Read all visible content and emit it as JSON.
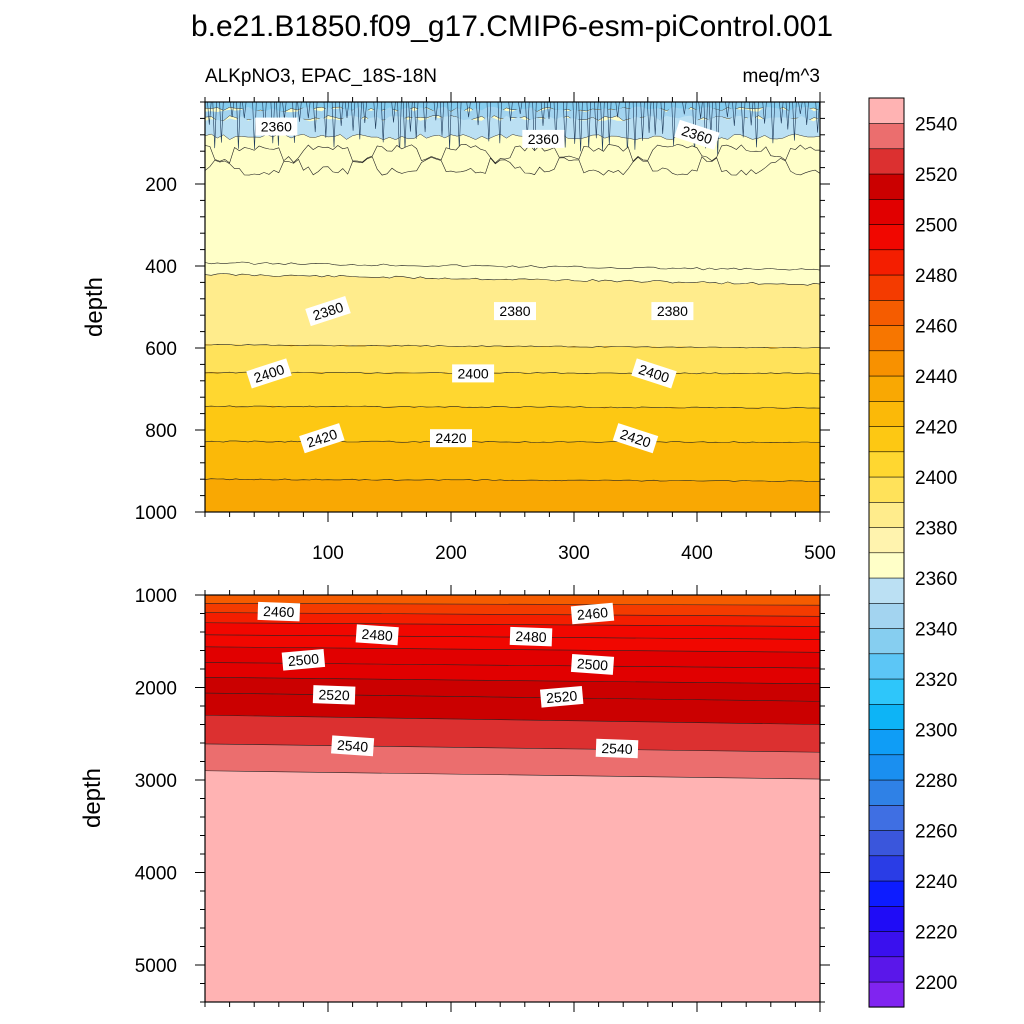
{
  "chart_data": {
    "type": "contour",
    "title": "b.e21.B1850.f09_g17.CMIP6-esm-piControl.001",
    "variable": "ALKpNO3, EPAC_18S-18N",
    "units": "meq/m^3",
    "panels": [
      {
        "name": "upper",
        "xlabel": "",
        "ylabel": "depth",
        "xlim": [
          0,
          500
        ],
        "ylim": [
          1000,
          0
        ],
        "x_ticks": [
          "100",
          "200",
          "300",
          "400",
          "500"
        ],
        "y_ticks": [
          "200",
          "400",
          "600",
          "800",
          "1000"
        ],
        "contour_labels": [
          {
            "text": "2360",
            "x": 58,
            "depth": 60
          },
          {
            "text": "2360",
            "x": 275,
            "depth": 90
          },
          {
            "text": "2360",
            "x": 400,
            "depth": 80
          },
          {
            "text": "2380",
            "x": 100,
            "depth": 510
          },
          {
            "text": "2380",
            "x": 252,
            "depth": 510
          },
          {
            "text": "2380",
            "x": 380,
            "depth": 510
          },
          {
            "text": "2400",
            "x": 52,
            "depth": 662
          },
          {
            "text": "2400",
            "x": 218,
            "depth": 662
          },
          {
            "text": "2400",
            "x": 365,
            "depth": 662
          },
          {
            "text": "2420",
            "x": 95,
            "depth": 820
          },
          {
            "text": "2420",
            "x": 200,
            "depth": 820
          },
          {
            "text": "2420",
            "x": 350,
            "depth": 820
          }
        ]
      },
      {
        "name": "lower",
        "xlabel": "",
        "ylabel": "depth",
        "xlim": [
          0,
          500
        ],
        "ylim": [
          5400,
          1000
        ],
        "y_ticks": [
          "1000",
          "2000",
          "3000",
          "4000",
          "5000"
        ],
        "contour_labels": [
          {
            "text": "2460",
            "x": 60,
            "depth": 1180
          },
          {
            "text": "2460",
            "x": 315,
            "depth": 1200
          },
          {
            "text": "2480",
            "x": 140,
            "depth": 1430
          },
          {
            "text": "2480",
            "x": 265,
            "depth": 1450
          },
          {
            "text": "2500",
            "x": 80,
            "depth": 1700
          },
          {
            "text": "2500",
            "x": 315,
            "depth": 1750
          },
          {
            "text": "2520",
            "x": 105,
            "depth": 2080
          },
          {
            "text": "2520",
            "x": 290,
            "depth": 2100
          },
          {
            "text": "2540",
            "x": 120,
            "depth": 2630
          },
          {
            "text": "2540",
            "x": 335,
            "depth": 2660
          }
        ]
      }
    ],
    "colorbar": {
      "levels_min": 2190,
      "levels_max": 2560,
      "level_step": 10,
      "labels": [
        "2200",
        "2220",
        "2240",
        "2260",
        "2280",
        "2300",
        "2320",
        "2340",
        "2360",
        "2380",
        "2400",
        "2420",
        "2440",
        "2460",
        "2480",
        "2500",
        "2520",
        "2540"
      ],
      "colors": [
        "#8024f0",
        "#5a17ea",
        "#3a10ee",
        "#1f0cf6",
        "#0d1cff",
        "#2a3de6",
        "#3a56dc",
        "#3f6fe3",
        "#2f81e6",
        "#1a8ff0",
        "#0f9df6",
        "#0db4f6",
        "#2ec6fa",
        "#5cc6f6",
        "#86cef0",
        "#a3d4f0",
        "#bbe0f3",
        "#ffffc8",
        "#fff3ae",
        "#ffec8c",
        "#ffe25a",
        "#ffd730",
        "#fdc813",
        "#fbb908",
        "#f9a803",
        "#f89100",
        "#f77600",
        "#f55c00",
        "#f43b00",
        "#f41e00",
        "#f10700",
        "#e10000",
        "#cb0000",
        "#dc3030",
        "#eb6e6e",
        "#ffb3b3"
      ]
    }
  }
}
